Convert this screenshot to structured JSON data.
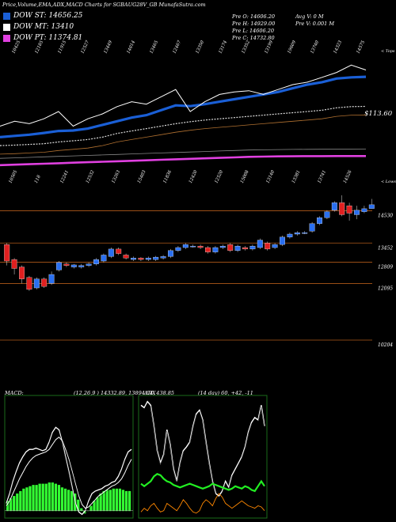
{
  "title": "Price,Volume,EMA,ADX,MACD Charts for SGBAUG28V_GB MunafaSutra.com",
  "legend": [
    {
      "label": "DOW ST: 14656.25",
      "color": "#1a5fd6"
    },
    {
      "label": "DOW MT: 13410",
      "color": "#ffffff"
    },
    {
      "label": "DOW PT: 11374.81",
      "color": "#e040e0"
    }
  ],
  "ohlc": {
    "open": "Pre   O: 14606.20",
    "high": "Pre   H: 14929.00",
    "low": "Pre   L: 14606.20",
    "close": "Pre   C: 14732.80",
    "avg_vol": "Avg V: 0  M",
    "pre_vol": "Pre   V: 0.001 M"
  },
  "ema_panel": {
    "top_labels": [
      "10425",
      "12185",
      "11915",
      "12527",
      "13449",
      "14014",
      "13465",
      "12467",
      "13350",
      "13174",
      "13352",
      "13199",
      "19609",
      "13740",
      "14323",
      "14575"
    ],
    "bottom_labels": [
      "10505",
      "118",
      "12241",
      "12532",
      "13263",
      "15403",
      "11836",
      "12420",
      "12520",
      "15008",
      "13140",
      "13381",
      "13741",
      "14526"
    ],
    "price_label": "$113.60",
    "corner_top": "< Tops",
    "corner_bottom": "< Lows"
  },
  "candle_panel": {
    "levels": [
      "14530",
      "13452",
      "12809",
      "12095",
      "10204"
    ]
  },
  "macd_panel": {
    "label": "MACD:",
    "params": "(12,26,9 ) 14332.89,  13894.04, 438.85",
    "colors": {
      "histogram": "#33ff33",
      "line": "#ffffff",
      "frame": "#1a6b1a"
    }
  },
  "adx_panel": {
    "label": "ADX",
    "params": "(14  day) 60,  +42,  -11",
    "colors": {
      "adx": "#ffffff",
      "plus_di": "#22ee22",
      "minus_di": "#ff8800"
    }
  },
  "chart_data": [
    {
      "type": "line",
      "series": [
        {
          "values": [
            12150,
            12200,
            12250,
            12320,
            12400,
            12420,
            12500,
            12650,
            12800,
            12950,
            13050,
            13250,
            13450,
            13420,
            13500,
            13600,
            13700,
            13800,
            13900,
            14000,
            14150,
            14300,
            14400,
            14550,
            14600,
            14620
          ]
        },
        {
          "values": [
            11800,
            11820,
            11850,
            11880,
            11950,
            12000,
            12050,
            12150,
            12300,
            12400,
            12500,
            12600,
            12700,
            12780,
            12850,
            12900,
            12950,
            13000,
            13050,
            13100,
            13150,
            13200,
            13250,
            13350,
            13400,
            13410
          ]
        },
        {
          "values": [
            11000,
            11020,
            11040,
            11060,
            11080,
            11100,
            11120,
            11140,
            11160,
            11180,
            11200,
            11220,
            11240,
            11260,
            11280,
            11300,
            11320,
            11340,
            11350,
            11360,
            11365,
            11370,
            11372,
            11374,
            11374,
            11375
          ]
        },
        {
          "values": [
            12600,
            12800,
            12700,
            12900,
            13200,
            12600,
            12900,
            13100,
            13400,
            13600,
            13500,
            13800,
            14100,
            13200,
            13600,
            13900,
            14000,
            14050,
            13900,
            14100,
            14300,
            14400,
            14600,
            14800,
            15100,
            14900
          ]
        }
      ]
    },
    {
      "type": "candlestick",
      "candles": [
        {
          "o": 13400,
          "c": 12850,
          "h": 13450,
          "l": 12700
        },
        {
          "o": 12900,
          "c": 12600,
          "h": 12950,
          "l": 12400
        },
        {
          "o": 12650,
          "c": 12250,
          "h": 12700,
          "l": 12100
        },
        {
          "o": 12300,
          "c": 11900,
          "h": 12350,
          "l": 11850
        },
        {
          "o": 11950,
          "c": 12250,
          "h": 12300,
          "l": 11900
        },
        {
          "o": 12250,
          "c": 12000,
          "h": 12300,
          "l": 11950
        },
        {
          "o": 12100,
          "c": 12400,
          "h": 12500,
          "l": 12050
        },
        {
          "o": 12550,
          "c": 12800,
          "h": 12850,
          "l": 12500
        },
        {
          "o": 12750,
          "c": 12700,
          "h": 12800,
          "l": 12650
        },
        {
          "o": 12650,
          "c": 12720,
          "h": 12750,
          "l": 12600
        },
        {
          "o": 12650,
          "c": 12700,
          "h": 12750,
          "l": 12600
        },
        {
          "o": 12700,
          "c": 12750,
          "h": 12800,
          "l": 12650
        },
        {
          "o": 12750,
          "c": 12900,
          "h": 12950,
          "l": 12700
        },
        {
          "o": 12850,
          "c": 13050,
          "h": 13100,
          "l": 12800
        },
        {
          "o": 13000,
          "c": 13250,
          "h": 13300,
          "l": 12950
        },
        {
          "o": 13250,
          "c": 13100,
          "h": 13300,
          "l": 13050
        },
        {
          "o": 13050,
          "c": 12950,
          "h": 13100,
          "l": 12900
        },
        {
          "o": 12900,
          "c": 12950,
          "h": 13000,
          "l": 12850
        },
        {
          "o": 12950,
          "c": 12900,
          "h": 12980,
          "l": 12850
        },
        {
          "o": 12900,
          "c": 12950,
          "h": 13000,
          "l": 12850
        },
        {
          "o": 12900,
          "c": 12980,
          "h": 13020,
          "l": 12850
        },
        {
          "o": 12950,
          "c": 13000,
          "h": 13050,
          "l": 12900
        },
        {
          "o": 13000,
          "c": 13200,
          "h": 13250,
          "l": 12950
        },
        {
          "o": 13200,
          "c": 13300,
          "h": 13350,
          "l": 13150
        },
        {
          "o": 13300,
          "c": 13400,
          "h": 13450,
          "l": 13250
        },
        {
          "o": 13350,
          "c": 13350,
          "h": 13400,
          "l": 13300
        },
        {
          "o": 13350,
          "c": 13300,
          "h": 13400,
          "l": 13250
        },
        {
          "o": 13300,
          "c": 13150,
          "h": 13350,
          "l": 13100
        },
        {
          "o": 13150,
          "c": 13300,
          "h": 13350,
          "l": 13100
        },
        {
          "o": 13300,
          "c": 13350,
          "h": 13400,
          "l": 13250
        },
        {
          "o": 13400,
          "c": 13200,
          "h": 13450,
          "l": 13150
        },
        {
          "o": 13200,
          "c": 13350,
          "h": 13400,
          "l": 13150
        },
        {
          "o": 13300,
          "c": 13250,
          "h": 13350,
          "l": 13200
        },
        {
          "o": 13250,
          "c": 13350,
          "h": 13400,
          "l": 13200
        },
        {
          "o": 13300,
          "c": 13550,
          "h": 13600,
          "l": 13250
        },
        {
          "o": 13450,
          "c": 13250,
          "h": 13500,
          "l": 13200
        },
        {
          "o": 13300,
          "c": 13400,
          "h": 13450,
          "l": 13250
        },
        {
          "o": 13400,
          "c": 13650,
          "h": 13700,
          "l": 13350
        },
        {
          "o": 13650,
          "c": 13750,
          "h": 13800,
          "l": 13600
        },
        {
          "o": 13750,
          "c": 13800,
          "h": 13850,
          "l": 13700
        },
        {
          "o": 13800,
          "c": 13800,
          "h": 13850,
          "l": 13750
        },
        {
          "o": 13850,
          "c": 14100,
          "h": 14150,
          "l": 13800
        },
        {
          "o": 14100,
          "c": 14300,
          "h": 14350,
          "l": 14050
        },
        {
          "o": 14300,
          "c": 14500,
          "h": 14550,
          "l": 14250
        },
        {
          "o": 14550,
          "c": 14800,
          "h": 14850,
          "l": 14500
        },
        {
          "o": 14800,
          "c": 14400,
          "h": 15050,
          "l": 14350
        },
        {
          "o": 14700,
          "c": 14450,
          "h": 14800,
          "l": 14200
        },
        {
          "o": 14400,
          "c": 14550,
          "h": 14700,
          "l": 14250
        },
        {
          "o": 14500,
          "c": 14600,
          "h": 14700,
          "l": 14450
        },
        {
          "o": 14606,
          "c": 14733,
          "h": 14929,
          "l": 14606
        }
      ]
    },
    {
      "type": "bar",
      "histogram": [
        0.14,
        0.16,
        0.18,
        0.2,
        0.22,
        0.24,
        0.25,
        0.26,
        0.27,
        0.27,
        0.28,
        0.28,
        0.28,
        0.29,
        0.29,
        0.28,
        0.27,
        0.25,
        0.24,
        0.23,
        0.22,
        0.2,
        0.15,
        0.08,
        0.04,
        0.06,
        0.1,
        0.14,
        0.17,
        0.2,
        0.22,
        0.23,
        0.23,
        0.24,
        0.24,
        0.24,
        0.23,
        0.22,
        0.22
      ],
      "macd_line": [
        0.12,
        0.2,
        0.3,
        0.38,
        0.45,
        0.5,
        0.54,
        0.56,
        0.56,
        0.57,
        0.56,
        0.55,
        0.56,
        0.62,
        0.7,
        0.74,
        0.72,
        0.62,
        0.5,
        0.38,
        0.25,
        0.12,
        0.05,
        0.03,
        0.06,
        0.14,
        0.2,
        0.22,
        0.23,
        0.24,
        0.26,
        0.27,
        0.29,
        0.3,
        0.34,
        0.4,
        0.48,
        0.54,
        0.56
      ],
      "signal_line": [
        0.1,
        0.14,
        0.2,
        0.26,
        0.32,
        0.37,
        0.42,
        0.46,
        0.49,
        0.51,
        0.52,
        0.53,
        0.54,
        0.56,
        0.6,
        0.64,
        0.66,
        0.63,
        0.56,
        0.48,
        0.38,
        0.28,
        0.18,
        0.11,
        0.08,
        0.09,
        0.12,
        0.15,
        0.18,
        0.2,
        0.22,
        0.24,
        0.26,
        0.27,
        0.29,
        0.32,
        0.37,
        0.43,
        0.48
      ]
    },
    {
      "type": "line",
      "series": [
        {
          "values": [
            0.92,
            0.9,
            0.95,
            0.92,
            0.75,
            0.55,
            0.45,
            0.52,
            0.72,
            0.6,
            0.4,
            0.3,
            0.45,
            0.55,
            0.58,
            0.62,
            0.75,
            0.85,
            0.88,
            0.8,
            0.62,
            0.45,
            0.3,
            0.2,
            0.18,
            0.22,
            0.3,
            0.25,
            0.35,
            0.4,
            0.45,
            0.5,
            0.58,
            0.7,
            0.78,
            0.82,
            0.8,
            0.92,
            0.75
          ]
        },
        {
          "values": [
            0.28,
            0.26,
            0.28,
            0.3,
            0.34,
            0.36,
            0.35,
            0.32,
            0.3,
            0.29,
            0.27,
            0.26,
            0.25,
            0.26,
            0.27,
            0.28,
            0.27,
            0.26,
            0.25,
            0.24,
            0.25,
            0.26,
            0.28,
            0.27,
            0.26,
            0.25,
            0.24,
            0.23,
            0.24,
            0.26,
            0.25,
            0.24,
            0.26,
            0.25,
            0.23,
            0.22,
            0.26,
            0.3,
            0.26
          ]
        },
        {
          "values": [
            0.05,
            0.08,
            0.06,
            0.1,
            0.12,
            0.08,
            0.05,
            0.06,
            0.12,
            0.1,
            0.08,
            0.06,
            0.1,
            0.15,
            0.12,
            0.08,
            0.05,
            0.04,
            0.06,
            0.12,
            0.15,
            0.13,
            0.1,
            0.16,
            0.2,
            0.17,
            0.12,
            0.1,
            0.08,
            0.1,
            0.12,
            0.14,
            0.12,
            0.1,
            0.09,
            0.08,
            0.1,
            0.09,
            0.06
          ]
        }
      ]
    }
  ]
}
